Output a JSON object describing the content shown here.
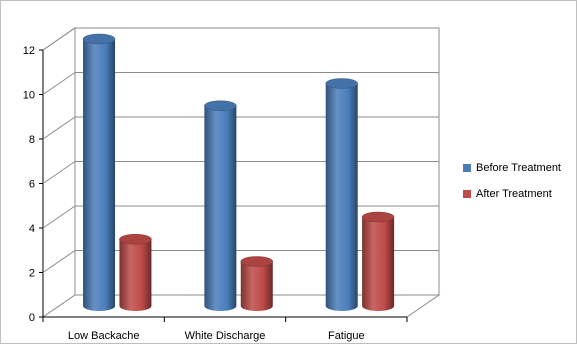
{
  "chart_data": {
    "type": "bar",
    "style": "3d-cylinder",
    "categories": [
      "Low Backache",
      "White Discharge",
      "Fatigue"
    ],
    "series": [
      {
        "name": "Before Treatment",
        "values": [
          12,
          9,
          10
        ],
        "color": "#4A7EBB"
      },
      {
        "name": "After Treatment",
        "values": [
          3,
          2,
          4
        ],
        "color": "#BE4B48"
      }
    ],
    "y_ticks": [
      "0",
      "2",
      "4",
      "6",
      "8",
      "10",
      "12"
    ],
    "ylim": [
      0,
      12
    ],
    "grid": true,
    "legend_position": "right"
  }
}
